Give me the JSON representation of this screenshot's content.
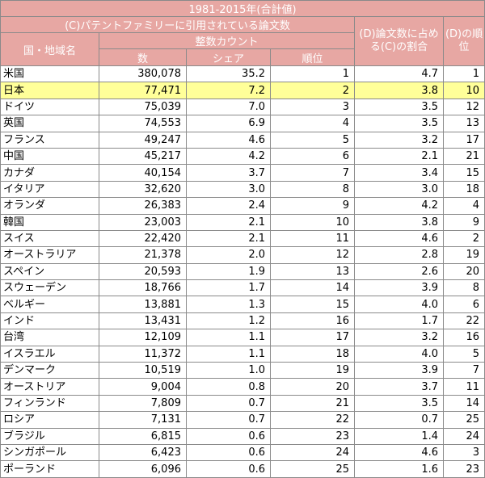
{
  "header": {
    "title": "1981-2015年(合計値)",
    "family_group": "(C)パテントファミリーに引用されている論文数",
    "country": "国・地域名",
    "integer_count": "整数カウント",
    "count": "数",
    "share": "シェア",
    "rank": "順位",
    "ratio": "(D)論文数に占める(C)の割合",
    "d_rank": "(D)の順位"
  },
  "highlight_color": "#ffff99",
  "header_color": "#e7a7a3",
  "rows": [
    {
      "country": "米国",
      "count": "380,078",
      "share": "35.2",
      "rank": "1",
      "ratio": "4.7",
      "d_rank": "1"
    },
    {
      "country": "日本",
      "count": "77,471",
      "share": "7.2",
      "rank": "2",
      "ratio": "3.8",
      "d_rank": "10",
      "highlight": true
    },
    {
      "country": "ドイツ",
      "count": "75,039",
      "share": "7.0",
      "rank": "3",
      "ratio": "3.5",
      "d_rank": "12"
    },
    {
      "country": "英国",
      "count": "74,553",
      "share": "6.9",
      "rank": "4",
      "ratio": "3.5",
      "d_rank": "13"
    },
    {
      "country": "フランス",
      "count": "49,247",
      "share": "4.6",
      "rank": "5",
      "ratio": "3.2",
      "d_rank": "17"
    },
    {
      "country": "中国",
      "count": "45,217",
      "share": "4.2",
      "rank": "6",
      "ratio": "2.1",
      "d_rank": "21"
    },
    {
      "country": "カナダ",
      "count": "40,154",
      "share": "3.7",
      "rank": "7",
      "ratio": "3.4",
      "d_rank": "15"
    },
    {
      "country": "イタリア",
      "count": "32,620",
      "share": "3.0",
      "rank": "8",
      "ratio": "3.0",
      "d_rank": "18"
    },
    {
      "country": "オランダ",
      "count": "26,383",
      "share": "2.4",
      "rank": "9",
      "ratio": "4.2",
      "d_rank": "4"
    },
    {
      "country": "韓国",
      "count": "23,003",
      "share": "2.1",
      "rank": "10",
      "ratio": "3.8",
      "d_rank": "9"
    },
    {
      "country": "スイス",
      "count": "22,420",
      "share": "2.1",
      "rank": "11",
      "ratio": "4.6",
      "d_rank": "2"
    },
    {
      "country": "オーストラリア",
      "count": "21,378",
      "share": "2.0",
      "rank": "12",
      "ratio": "2.8",
      "d_rank": "19"
    },
    {
      "country": "スペイン",
      "count": "20,593",
      "share": "1.9",
      "rank": "13",
      "ratio": "2.6",
      "d_rank": "20"
    },
    {
      "country": "スウェーデン",
      "count": "18,766",
      "share": "1.7",
      "rank": "14",
      "ratio": "3.9",
      "d_rank": "8"
    },
    {
      "country": "ベルギー",
      "count": "13,881",
      "share": "1.3",
      "rank": "15",
      "ratio": "4.0",
      "d_rank": "6"
    },
    {
      "country": "インド",
      "count": "13,431",
      "share": "1.2",
      "rank": "16",
      "ratio": "1.7",
      "d_rank": "22"
    },
    {
      "country": "台湾",
      "count": "12,109",
      "share": "1.1",
      "rank": "17",
      "ratio": "3.2",
      "d_rank": "16"
    },
    {
      "country": "イスラエル",
      "count": "11,372",
      "share": "1.1",
      "rank": "18",
      "ratio": "4.0",
      "d_rank": "5"
    },
    {
      "country": "デンマーク",
      "count": "10,519",
      "share": "1.0",
      "rank": "19",
      "ratio": "3.9",
      "d_rank": "7"
    },
    {
      "country": "オーストリア",
      "count": "9,004",
      "share": "0.8",
      "rank": "20",
      "ratio": "3.7",
      "d_rank": "11"
    },
    {
      "country": "フィンランド",
      "count": "7,809",
      "share": "0.7",
      "rank": "21",
      "ratio": "3.5",
      "d_rank": "14"
    },
    {
      "country": "ロシア",
      "count": "7,131",
      "share": "0.7",
      "rank": "22",
      "ratio": "0.7",
      "d_rank": "25"
    },
    {
      "country": "ブラジル",
      "count": "6,815",
      "share": "0.6",
      "rank": "23",
      "ratio": "1.4",
      "d_rank": "24"
    },
    {
      "country": "シンガポール",
      "count": "6,423",
      "share": "0.6",
      "rank": "24",
      "ratio": "4.6",
      "d_rank": "3"
    },
    {
      "country": "ポーランド",
      "count": "6,096",
      "share": "0.6",
      "rank": "25",
      "ratio": "1.6",
      "d_rank": "23"
    }
  ]
}
